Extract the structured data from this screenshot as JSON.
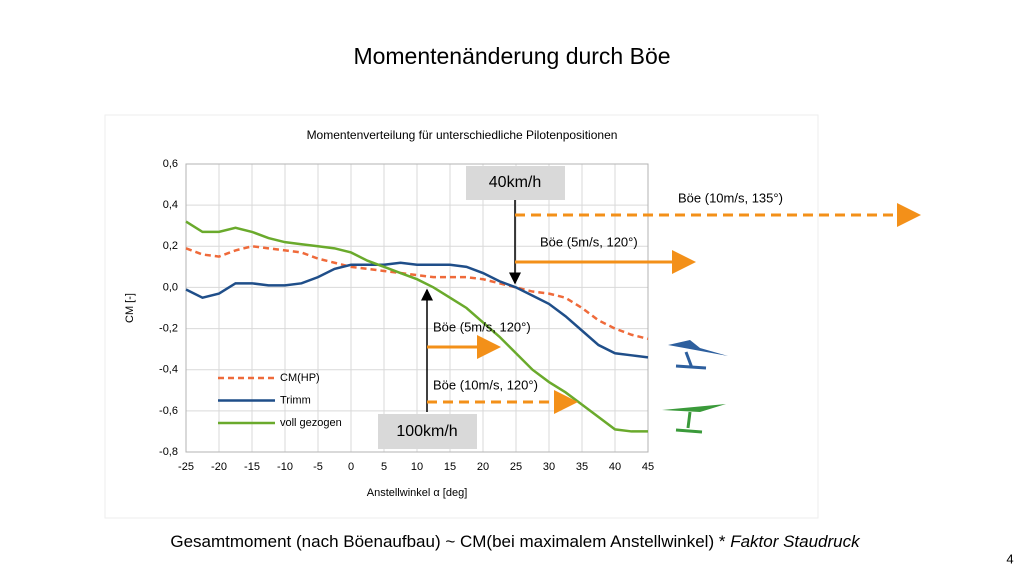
{
  "slide": {
    "title": "Momentenänderung durch Böe",
    "footer_text": "Gesamtmoment (nach Böenaufbau) ~ CM(bei maximalem Anstellwinkel) * ",
    "footer_italic": "Faktor Staudruck",
    "page_number": "4"
  },
  "chart_data": {
    "type": "line",
    "title": "Momentenverteilung für unterschiedliche Pilotenpositionen",
    "x_label": "Anstellwinkel α [deg]",
    "y_label": "CM [-]",
    "x": [
      -25,
      -22.5,
      -20,
      -17.5,
      -15,
      -12.5,
      -10,
      -7.5,
      -5,
      -2.5,
      0,
      2.5,
      5,
      7.5,
      10,
      12.5,
      15,
      17.5,
      20,
      22.5,
      25,
      27.5,
      30,
      32.5,
      35,
      37.5,
      40,
      42.5,
      45
    ],
    "series": [
      {
        "name": "CM(HP)",
        "color": "#ef6a3a",
        "style": "dashed",
        "values": [
          0.19,
          0.16,
          0.15,
          0.18,
          0.2,
          0.19,
          0.18,
          0.17,
          0.14,
          0.12,
          0.1,
          0.09,
          0.08,
          0.07,
          0.06,
          0.05,
          0.05,
          0.05,
          0.04,
          0.02,
          0.0,
          -0.02,
          -0.03,
          -0.05,
          -0.1,
          -0.16,
          -0.2,
          -0.23,
          -0.25
        ]
      },
      {
        "name": "Trimm",
        "color": "#1f4e89",
        "style": "solid",
        "values": [
          -0.01,
          -0.05,
          -0.03,
          0.02,
          0.02,
          0.01,
          0.01,
          0.02,
          0.05,
          0.09,
          0.11,
          0.11,
          0.11,
          0.12,
          0.11,
          0.11,
          0.11,
          0.1,
          0.07,
          0.03,
          0.0,
          -0.04,
          -0.08,
          -0.14,
          -0.21,
          -0.28,
          -0.32,
          -0.33,
          -0.34
        ]
      },
      {
        "name": "voll gezogen",
        "color": "#6aaa2c",
        "style": "solid",
        "values": [
          0.32,
          0.27,
          0.27,
          0.29,
          0.27,
          0.24,
          0.22,
          0.21,
          0.2,
          0.19,
          0.17,
          0.13,
          0.1,
          0.07,
          0.04,
          0.0,
          -0.05,
          -0.1,
          -0.17,
          -0.24,
          -0.32,
          -0.4,
          -0.46,
          -0.51,
          -0.57,
          -0.63,
          -0.69,
          -0.7,
          -0.7
        ]
      }
    ],
    "xlim": [
      -25,
      45
    ],
    "xticks": [
      -25,
      -20,
      -15,
      -10,
      -5,
      0,
      5,
      10,
      15,
      20,
      25,
      30,
      35,
      40,
      45
    ],
    "ylim": [
      -0.8,
      0.6
    ],
    "yticks": [
      {
        "value": -0.8,
        "label": "-0,8"
      },
      {
        "value": -0.6,
        "label": "-0,6"
      },
      {
        "value": -0.4,
        "label": "-0,4"
      },
      {
        "value": -0.2,
        "label": "-0,2"
      },
      {
        "value": 0,
        "label": "0,0"
      },
      {
        "value": 0.2,
        "label": "0,2"
      },
      {
        "value": 0.4,
        "label": "0,4"
      },
      {
        "value": 0.6,
        "label": "0,6"
      }
    ],
    "grid": true,
    "legend": "lower left",
    "annotations": {
      "speed_low": "40km/h",
      "speed_high": "100km/h",
      "gust_a": "Böe (10m/s, 135°)",
      "gust_b": "Böe (5m/s, 120°)",
      "gust_c": "Böe (5m/s, 120°)",
      "gust_d": "Böe (10m/s, 120°)"
    }
  }
}
